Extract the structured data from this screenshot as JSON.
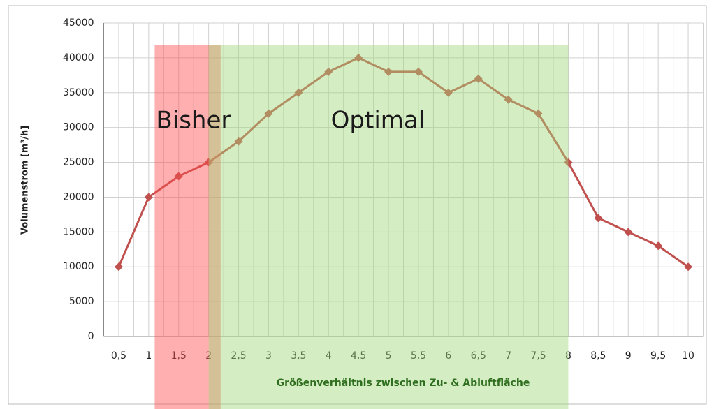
{
  "chart_data": {
    "type": "line",
    "ylabel": "Volumenstrom [m³/h]",
    "xlabel": "Größenverhältnis zwischen Zu- & Abluftfläche",
    "categories": [
      "0,5",
      "1",
      "1,5",
      "2",
      "2,5",
      "3",
      "3,5",
      "4",
      "4,5",
      "5",
      "5,5",
      "6",
      "6,5",
      "7",
      "7,5",
      "8",
      "8,5",
      "9",
      "9,5",
      "10"
    ],
    "series": [
      {
        "name": "Volumenstrom",
        "color": "#c0504d",
        "values": [
          10000,
          20000,
          23000,
          25000,
          28000,
          32000,
          35000,
          38000,
          40000,
          38000,
          38000,
          35000,
          37000,
          34000,
          32000,
          25000,
          17000,
          15000,
          13000,
          10000
        ]
      }
    ],
    "ylim": [
      0,
      45000
    ],
    "yticks": [
      0,
      5000,
      10000,
      15000,
      20000,
      25000,
      30000,
      35000,
      40000,
      45000
    ],
    "grid": true,
    "regions": [
      {
        "label": "Bisher",
        "color": "#ff4d4d",
        "x": [
          1.1,
          2.2
        ],
        "top": 41800
      },
      {
        "label": "Optimal",
        "color": "#9fd67a",
        "x": [
          2,
          8
        ],
        "top": 41800
      }
    ]
  }
}
